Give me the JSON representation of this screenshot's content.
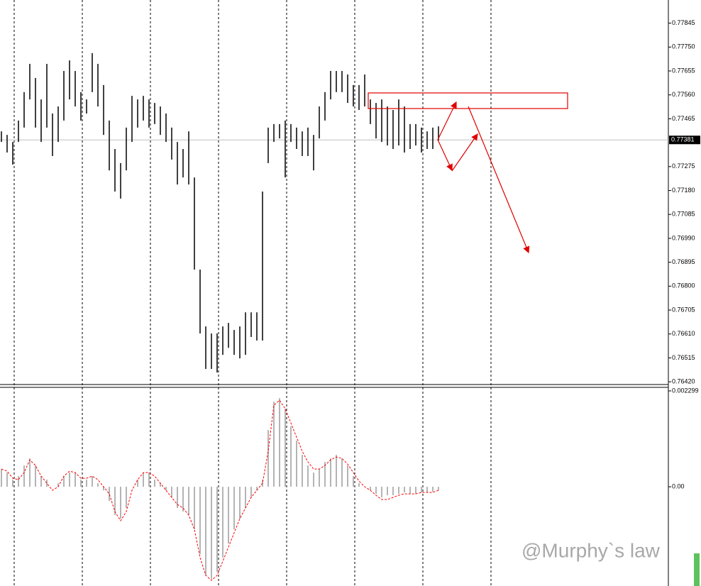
{
  "chart_data": [
    {
      "type": "hilo",
      "color": "#000000",
      "high": [
        0.77415,
        0.77401,
        0.77373,
        0.77458,
        0.77571,
        0.77683,
        0.77627,
        0.77542,
        0.77683,
        0.77486,
        0.77514,
        0.77655,
        0.77697,
        0.77655,
        0.77571,
        0.77542,
        0.77726,
        0.77683,
        0.77599,
        0.77458,
        0.77345,
        0.77289,
        0.7743,
        0.77556,
        0.77542,
        0.77556,
        0.77542,
        0.77528,
        0.77514,
        0.77486,
        0.7743,
        0.77373,
        0.77345,
        0.77415,
        0.77232,
        0.76866,
        0.7664,
        0.76612,
        0.76612,
        0.7664,
        0.76654,
        0.76626,
        0.7664,
        0.76696,
        0.76696,
        0.76696,
        0.77176,
        0.7743,
        0.77444,
        0.77444,
        0.77458,
        0.77444,
        0.7743,
        0.77415,
        0.7743,
        0.77401,
        0.77514,
        0.77571,
        0.77655,
        0.77655,
        0.77655,
        0.77641,
        0.77599,
        0.77599,
        0.77641,
        0.77542,
        0.77528,
        0.77542,
        0.77514,
        0.775,
        0.77542,
        0.77514,
        0.77444,
        0.77444,
        0.7743,
        0.77415,
        0.7743,
        0.77435
      ],
      "low": [
        0.77373,
        0.77331,
        0.77283,
        0.77373,
        0.7743,
        0.77542,
        0.7743,
        0.77373,
        0.7743,
        0.77317,
        0.77373,
        0.77458,
        0.77542,
        0.77514,
        0.77458,
        0.77486,
        0.77571,
        0.77514,
        0.77401,
        0.7726,
        0.77176,
        0.77148,
        0.7726,
        0.77373,
        0.7743,
        0.77458,
        0.7743,
        0.77444,
        0.77401,
        0.77373,
        0.77303,
        0.77204,
        0.77232,
        0.77204,
        0.76866,
        0.76612,
        0.76471,
        0.76471,
        0.76457,
        0.76527,
        0.76555,
        0.76527,
        0.76513,
        0.76527,
        0.76598,
        0.76584,
        0.76584,
        0.77289,
        0.77373,
        0.77387,
        0.77232,
        0.77373,
        0.77345,
        0.77317,
        0.77317,
        0.7726,
        0.77387,
        0.77458,
        0.77542,
        0.77571,
        0.77571,
        0.77528,
        0.77514,
        0.775,
        0.77514,
        0.77444,
        0.77387,
        0.77373,
        0.77359,
        0.77345,
        0.77359,
        0.77331,
        0.77345,
        0.77359,
        0.77331,
        0.77345,
        0.77345,
        0.77379
      ],
      "ylim": [
        0.76412,
        0.77937
      ],
      "yticks": [
        0.77845,
        {
          "value": 0.7775,
          "label": "0.77750"
        },
        0.77655,
        {
          "value": 0.7756,
          "label": "0.77560"
        },
        0.77465,
        0.77275,
        {
          "value": 0.7718,
          "label": "0.77180"
        },
        0.77085,
        {
          "value": 0.7699,
          "label": "0.76990"
        },
        0.76895,
        {
          "value": 0.768,
          "label": "0.76800"
        },
        0.76705,
        {
          "value": 0.7661,
          "label": "0.76610"
        },
        0.76515,
        {
          "value": 0.7642,
          "label": "0.76420"
        }
      ],
      "last_price": 0.77381
    },
    {
      "type": "macd",
      "series": [
        {
          "color": "#b4b4b4",
          "values": [
            0.000425,
            0.00034,
            0.00017,
            0.000255,
            0.00051,
            0.00068,
            0.00051,
            0.000255,
            0.00017,
            0,
            8.5e-05,
            0.000255,
            0.00034,
            0.00034,
            0.00017,
            0.00017,
            0.000255,
            8.5e-05,
            -8.5e-05,
            -0.00034,
            -0.00068,
            -0.000765,
            -0.00051,
            0,
            0.00017,
            0.00034,
            0.00034,
            0.00017,
            8.5e-05,
            -8.5e-05,
            -0.000255,
            -0.00051,
            -0.000595,
            -0.00068,
            -0.00102,
            -0.001615,
            -0.002125,
            -0.00221,
            -0.00204,
            -0.0017,
            -0.00136,
            -0.00102,
            -0.000765,
            -0.00051,
            -0.000255,
            -8.5e-05,
            0.00017,
            0.00136,
            0.00204,
            0.002125,
            0.00187,
            0.001445,
            0.001105,
            0.000765,
            0.00051,
            0.00034,
            0.000425,
            0.000595,
            0.00068,
            0.000765,
            0.00068,
            0.00051,
            0.000255,
            8.5e-05,
            0,
            -8.5e-05,
            -0.00017,
            -0.000255,
            -0.000204,
            -0.000204,
            -0.00017,
            -0.000136,
            -0.00017,
            -0.00017,
            -0.000136,
            -0.000136,
            -0.000119,
            -8.5e-05
          ]
        },
        {
          "color": "#ff0000",
          "values": [
            0.000425,
            0.000374,
            0.000204,
            0.00017,
            0.00034,
            0.000646,
            0.00051,
            0.000255,
            8.5e-05,
            -8.5e-05,
            0,
            0.000255,
            0.000374,
            0.00034,
            0.000204,
            0.000204,
            0.000255,
            0.00017,
            0,
            -0.00017,
            -0.000595,
            -0.000816,
            -0.000595,
            -8.5e-05,
            0.00017,
            0.00034,
            0.00034,
            0.000255,
            8.5e-05,
            -8.5e-05,
            -0.000255,
            -0.000425,
            -0.00051,
            -0.00068,
            -0.00102,
            -0.0017,
            -0.002125,
            -0.002244,
            -0.002125,
            -0.001785,
            -0.001445,
            -0.001105,
            -0.000765,
            -0.00051,
            -0.000255,
            -8.5e-05,
            8.5e-05,
            0.00085,
            0.001955,
            0.002074,
            0.00187,
            0.00153,
            0.00119,
            0.00085,
            0.000595,
            0.000425,
            0.000425,
            0.00051,
            0.000646,
            0.000714,
            0.00068,
            0.000544,
            0.00034,
            0.000136,
            0,
            -8.5e-05,
            -0.000204,
            -0.000306,
            -0.000306,
            -0.000255,
            -0.000204,
            -0.00017,
            -0.00017,
            -0.00017,
            -0.000136,
            -0.000136,
            -0.000136,
            -8.5e-05
          ]
        }
      ],
      "ylim": [
        -0.00238,
        0.00235
      ],
      "yticks": [
        0.002299,
        {
          "value": 0,
          "label": "0.00"
        }
      ]
    }
  ],
  "watermark": "@Murphy`s law"
}
